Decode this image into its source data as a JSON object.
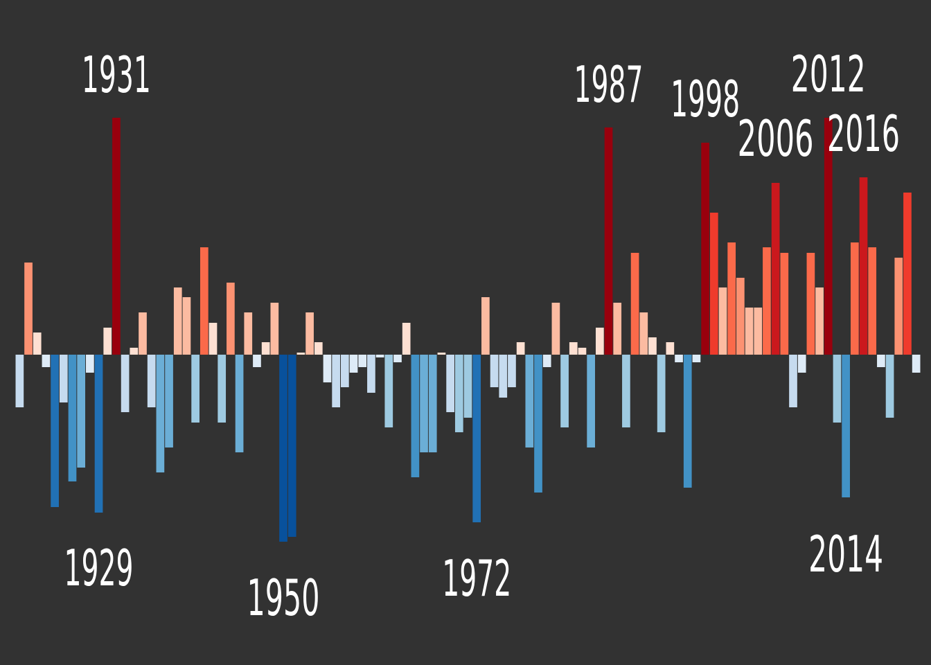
{
  "chart_data": {
    "type": "bar",
    "x": [
      1920,
      1921,
      1922,
      1923,
      1924,
      1925,
      1926,
      1927,
      1928,
      1929,
      1930,
      1931,
      1932,
      1933,
      1934,
      1935,
      1936,
      1937,
      1938,
      1939,
      1940,
      1941,
      1942,
      1943,
      1944,
      1945,
      1946,
      1947,
      1948,
      1949,
      1950,
      1951,
      1952,
      1953,
      1954,
      1955,
      1956,
      1957,
      1958,
      1959,
      1960,
      1961,
      1962,
      1963,
      1964,
      1965,
      1966,
      1967,
      1968,
      1969,
      1970,
      1971,
      1972,
      1973,
      1974,
      1975,
      1976,
      1977,
      1978,
      1979,
      1980,
      1981,
      1982,
      1983,
      1984,
      1985,
      1986,
      1987,
      1988,
      1989,
      1990,
      1991,
      1992,
      1993,
      1994,
      1995,
      1996,
      1997,
      1998,
      1999,
      2000,
      2001,
      2002,
      2003,
      2004,
      2005,
      2006,
      2007,
      2008,
      2009,
      2010,
      2011,
      2012,
      2013,
      2014,
      2015,
      2016,
      2017,
      2018,
      2019,
      2020,
      2021,
      2022
    ],
    "values": [
      -0.76,
      1.33,
      0.32,
      -0.18,
      -2.2,
      -0.69,
      -1.83,
      -1.63,
      -0.26,
      -2.28,
      0.39,
      3.42,
      -0.83,
      0.1,
      0.61,
      -0.76,
      -1.7,
      -1.34,
      0.97,
      0.83,
      -0.98,
      1.55,
      0.46,
      -0.98,
      1.04,
      -1.41,
      0.61,
      -0.18,
      0.18,
      0.75,
      -2.7,
      -2.63,
      0.03,
      0.61,
      0.18,
      -0.4,
      -0.76,
      -0.47,
      -0.26,
      -0.18,
      -0.55,
      -0.04,
      -1.05,
      -0.11,
      0.46,
      -1.77,
      -1.41,
      -1.41,
      0.03,
      -0.83,
      -1.12,
      -0.91,
      -2.42,
      0.83,
      -0.47,
      -0.62,
      -0.47,
      0.18,
      -1.34,
      -1.99,
      -0.18,
      0.75,
      -1.05,
      0.18,
      0.1,
      -1.34,
      0.39,
      3.28,
      0.75,
      -1.05,
      1.47,
      0.61,
      0.25,
      -1.12,
      0.18,
      -0.11,
      -1.92,
      -0.11,
      3.06,
      2.05,
      0.97,
      1.62,
      1.11,
      0.68,
      0.68,
      1.55,
      2.48,
      1.47,
      -0.76,
      -0.26,
      1.47,
      0.97,
      3.42,
      -0.98,
      -2.06,
      1.62,
      2.56,
      1.55,
      -0.18,
      -0.91,
      1.4,
      2.34,
      -0.26
    ],
    "xlim": [
      1919.5,
      2022.5
    ],
    "ylim": [
      -4.48,
      5.12
    ],
    "annotations": [
      {
        "text": "1931",
        "x": 1931
      },
      {
        "text": "1929",
        "x": 1929
      },
      {
        "text": "1950",
        "x": 1950
      },
      {
        "text": "1972",
        "x": 1972
      },
      {
        "text": "1987",
        "x": 1987
      },
      {
        "text": "1998",
        "x": 1998
      },
      {
        "text": "2006",
        "x": 2006
      },
      {
        "text": "2012",
        "x": 2012
      },
      {
        "text": "2016",
        "x": 2016
      },
      {
        "text": "2014",
        "x": 2014
      }
    ]
  }
}
